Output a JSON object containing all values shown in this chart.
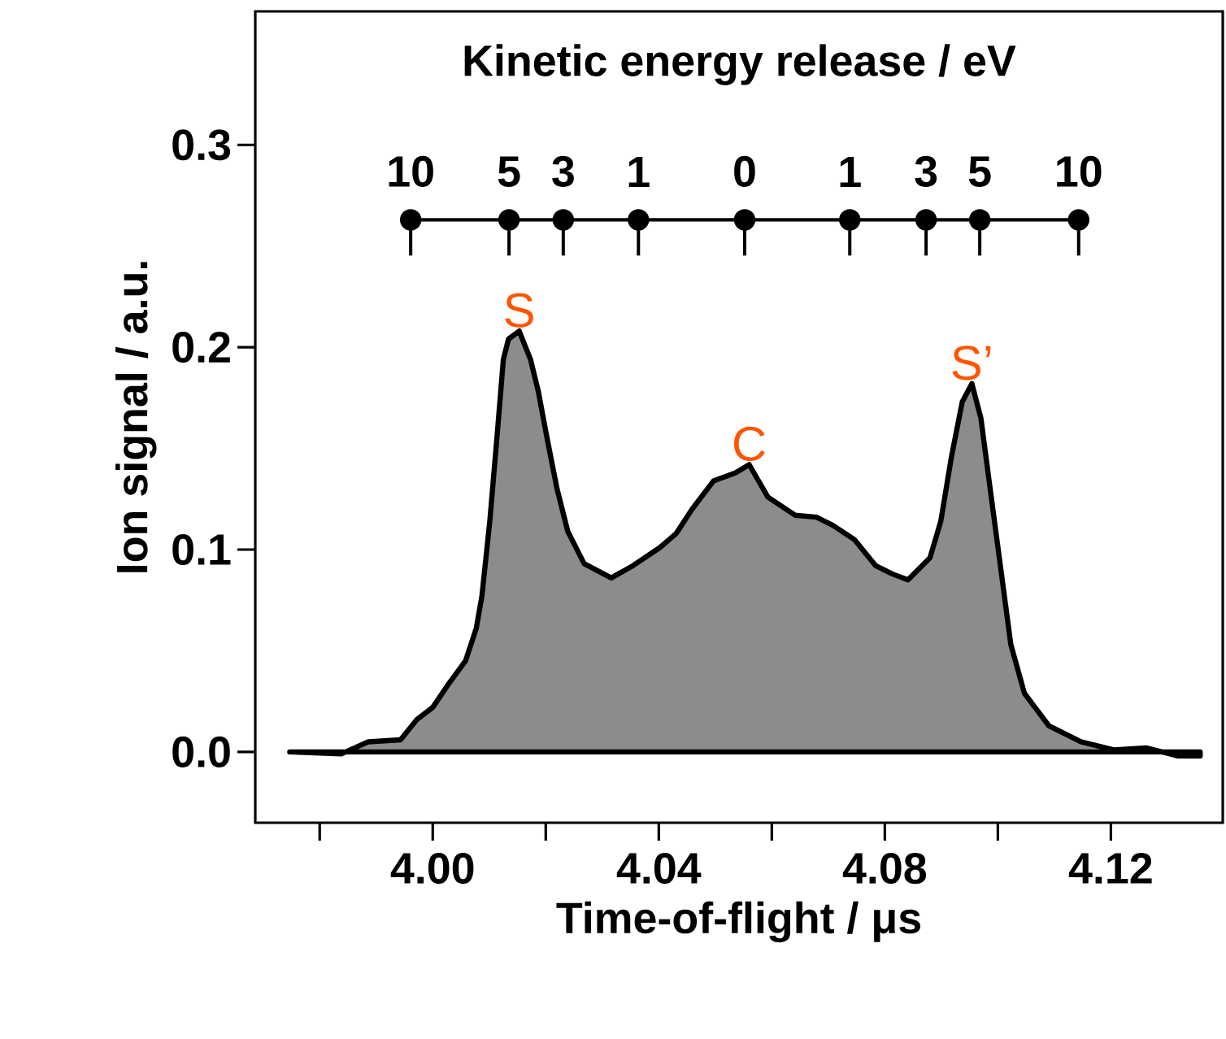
{
  "chart_data": {
    "type": "area",
    "xlabel": "Time-of-flight / μs",
    "ylabel": "Ion signal / a.u.",
    "xlim": [
      3.9686,
      4.1398
    ],
    "ylim": [
      -0.035,
      0.366
    ],
    "xticks": [
      {
        "value": 3.98,
        "label": null
      },
      {
        "value": 4.0,
        "label": "4.00"
      },
      {
        "value": 4.02,
        "label": null
      },
      {
        "value": 4.04,
        "label": "4.04"
      },
      {
        "value": 4.06,
        "label": null
      },
      {
        "value": 4.08,
        "label": "4.08"
      },
      {
        "value": 4.1,
        "label": null
      },
      {
        "value": 4.12,
        "label": "4.12"
      }
    ],
    "yticks": [
      {
        "value": 0.0,
        "label": "0.0"
      },
      {
        "value": 0.1,
        "label": "0.1"
      },
      {
        "value": 0.2,
        "label": "0.2"
      },
      {
        "value": 0.3,
        "label": "0.3"
      }
    ],
    "grid": false,
    "series": [
      {
        "color": "#8c8c8c",
        "x": [
          3.9747,
          3.9838,
          3.9886,
          3.9943,
          3.9972,
          4.0,
          4.0029,
          4.0058,
          4.0077,
          4.0087,
          4.0101,
          4.0115,
          4.0125,
          4.0134,
          4.0153,
          4.0173,
          4.0187,
          4.0201,
          4.022,
          4.0239,
          4.0268,
          4.0316,
          4.0354,
          4.0402,
          4.0431,
          4.0459,
          4.0497,
          4.0536,
          4.056,
          4.0593,
          4.0641,
          4.0679,
          4.0708,
          4.0746,
          4.0784,
          4.0813,
          4.0841,
          4.088,
          4.0899,
          4.0918,
          4.0937,
          4.0954,
          4.097,
          4.0985,
          4.1004,
          4.1023,
          4.1047,
          4.109,
          4.1147,
          4.1205,
          4.1262,
          4.1319,
          4.1358
        ],
        "values": [
          0.0,
          -0.001,
          0.005,
          0.006,
          0.016,
          0.022,
          0.034,
          0.045,
          0.061,
          0.077,
          0.114,
          0.16,
          0.194,
          0.204,
          0.208,
          0.194,
          0.178,
          0.157,
          0.13,
          0.109,
          0.093,
          0.086,
          0.092,
          0.101,
          0.108,
          0.12,
          0.134,
          0.138,
          0.142,
          0.126,
          0.117,
          0.116,
          0.112,
          0.105,
          0.092,
          0.088,
          0.085,
          0.096,
          0.114,
          0.146,
          0.173,
          0.182,
          0.165,
          0.133,
          0.093,
          0.053,
          0.029,
          0.013,
          0.005,
          0.001,
          0.002,
          -0.002,
          -0.002
        ]
      },
      {
        "type": "line",
        "color": "#000000",
        "marker": "circle",
        "x": [
          3.9961,
          4.0135,
          4.0231,
          4.0364,
          4.0552,
          4.0738,
          4.0873,
          4.0968,
          4.1143
        ],
        "values": [
          0.263,
          0.263,
          0.263,
          0.263,
          0.263,
          0.263,
          0.263,
          0.263,
          0.263
        ]
      }
    ],
    "annotations": [
      "Kinetic energy release / eV",
      {
        "text": "10",
        "x": 3.9961,
        "y": 0.263
      },
      {
        "text": "5",
        "x": 4.0135,
        "y": 0.263
      },
      {
        "text": "3",
        "x": 4.0231,
        "y": 0.263
      },
      {
        "text": "1",
        "x": 4.0364,
        "y": 0.263
      },
      {
        "text": "0",
        "x": 4.0552,
        "y": 0.263
      },
      {
        "text": "1",
        "x": 4.0738,
        "y": 0.263
      },
      {
        "text": "3",
        "x": 4.0873,
        "y": 0.263
      },
      {
        "text": "5",
        "x": 4.0968,
        "y": 0.263
      },
      {
        "text": "10",
        "x": 4.1143,
        "y": 0.263
      },
      {
        "text": "S",
        "x": 4.0153,
        "y": 0.208
      },
      {
        "text": "C",
        "x": 4.056,
        "y": 0.142
      },
      {
        "text": "S’",
        "x": 4.0954,
        "y": 0.182
      }
    ]
  }
}
